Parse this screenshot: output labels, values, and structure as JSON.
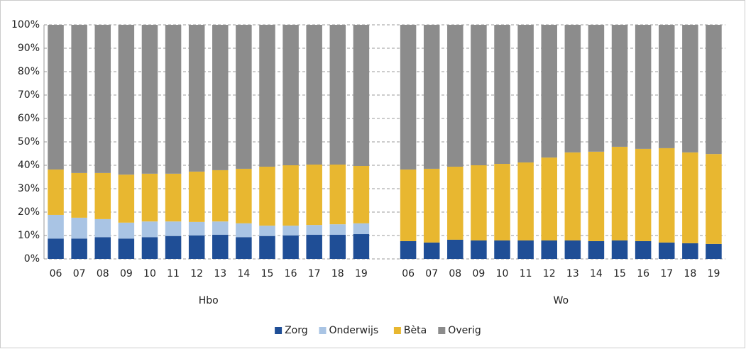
{
  "chart_data": {
    "type": "stacked_bar",
    "categories": [
      "06",
      "07",
      "08",
      "09",
      "10",
      "11",
      "12",
      "13",
      "14",
      "15",
      "16",
      "17",
      "18",
      "19",
      null,
      "06",
      "07",
      "08",
      "09",
      "10",
      "11",
      "12",
      "13",
      "14",
      "15",
      "16",
      "17",
      "18",
      "19"
    ],
    "group_labels": [
      "Hbo",
      "Wo"
    ],
    "series": [
      {
        "name": "Zorg",
        "color": "#1f4e96",
        "values": [
          8.7,
          8.7,
          9.3,
          8.7,
          9.3,
          9.8,
          10.0,
          10.3,
          9.3,
          9.8,
          10.0,
          10.3,
          10.3,
          10.6,
          null,
          7.6,
          7.0,
          8.2,
          7.9,
          7.9,
          7.9,
          7.9,
          7.9,
          7.6,
          7.9,
          7.6,
          7.0,
          6.7,
          6.4
        ]
      },
      {
        "name": "Onderwijs",
        "color": "#a9c4e4",
        "values": [
          10.1,
          8.9,
          7.7,
          6.8,
          6.7,
          6.2,
          5.8,
          5.7,
          5.9,
          4.4,
          4.2,
          4.2,
          4.5,
          4.6,
          null,
          0,
          0,
          0,
          0,
          0,
          0,
          0,
          0,
          0,
          0,
          0,
          0,
          0,
          0
        ]
      },
      {
        "name": "Bèta",
        "color": "#e8b730",
        "values": [
          19.4,
          19.1,
          19.7,
          20.5,
          20.4,
          20.4,
          21.5,
          21.9,
          23.3,
          25.2,
          25.8,
          25.8,
          25.5,
          24.5,
          null,
          30.6,
          31.5,
          31.2,
          32.1,
          32.7,
          33.3,
          35.4,
          37.6,
          38.2,
          40.0,
          39.4,
          40.3,
          38.8,
          38.4
        ]
      },
      {
        "name": "Overig",
        "color": "#8c8c8c",
        "values": [
          61.8,
          63.3,
          63.3,
          64.0,
          63.6,
          63.6,
          62.7,
          62.1,
          61.5,
          60.6,
          60.0,
          59.7,
          59.7,
          60.3,
          null,
          61.8,
          61.5,
          60.6,
          60.0,
          59.4,
          58.8,
          56.7,
          54.5,
          54.2,
          52.1,
          53.0,
          52.7,
          54.5,
          55.2
        ]
      }
    ],
    "ylim": [
      0,
      100
    ],
    "yticks": [
      {
        "value": 0,
        "label": "0%"
      },
      {
        "value": 10,
        "label": "10%"
      },
      {
        "value": 20,
        "label": "20%"
      },
      {
        "value": 30,
        "label": "30%"
      },
      {
        "value": 40,
        "label": "40%"
      },
      {
        "value": 50,
        "label": "50%"
      },
      {
        "value": 60,
        "label": "60%"
      },
      {
        "value": 70,
        "label": "70%"
      },
      {
        "value": 80,
        "label": "80%"
      },
      {
        "value": 90,
        "label": "90%"
      },
      {
        "value": 100,
        "label": "100%"
      }
    ],
    "grid": true,
    "legend": "bottom"
  }
}
